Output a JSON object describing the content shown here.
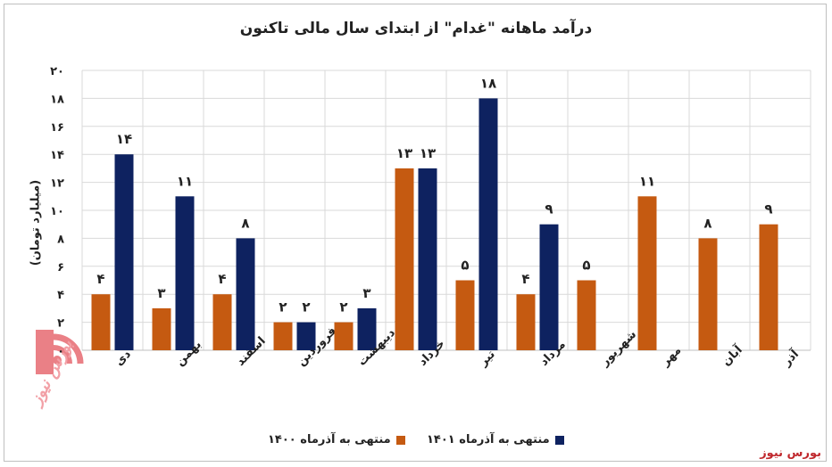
{
  "chart_data": {
    "type": "bar",
    "title": "درآمد ماهانه \"غدام\" از ابتدای سال مالی تاکنون",
    "ylabel": "(میلیارد تومان)",
    "xlabel": "",
    "ylim": [
      0,
      20
    ],
    "yticks": [
      0,
      2,
      4,
      6,
      8,
      10,
      12,
      14,
      16,
      18,
      20
    ],
    "ytick_labels": [
      "۰",
      "۲",
      "۴",
      "۶",
      "۸",
      "۱۰",
      "۱۲",
      "۱۴",
      "۱۶",
      "۱۸",
      "۲۰"
    ],
    "grid": true,
    "legend_position": "bottom",
    "categories": [
      "دی",
      "بهمن",
      "اسفند",
      "فروردین",
      "اردیبهشت",
      "خرداد",
      "تیر",
      "مرداد",
      "شهریور",
      "مهر",
      "آبان",
      "آذر"
    ],
    "series": [
      {
        "name": "منتهی به آذرماه ۱۴۰۰",
        "color": "#c55a11",
        "values": [
          4,
          3,
          4,
          2,
          2,
          13,
          5,
          4,
          5,
          11,
          8,
          9
        ],
        "labels": [
          "۴",
          "۳",
          "۴",
          "۲",
          "۲",
          "۱۳",
          "۵",
          "۴",
          "۵",
          "۱۱",
          "۸",
          "۹"
        ]
      },
      {
        "name": "منتهی به آذرماه ۱۴۰۱",
        "color": "#0e2260",
        "values": [
          14,
          11,
          8,
          2,
          3,
          13,
          18,
          9,
          null,
          null,
          null,
          null
        ],
        "labels": [
          "۱۴",
          "۱۱",
          "۸",
          "۲",
          "۳",
          "۱۳",
          "۱۸",
          "۹",
          "",
          "",
          "",
          ""
        ]
      }
    ]
  },
  "source": "بورس نیوز",
  "watermark_text": "بورس نیوز"
}
